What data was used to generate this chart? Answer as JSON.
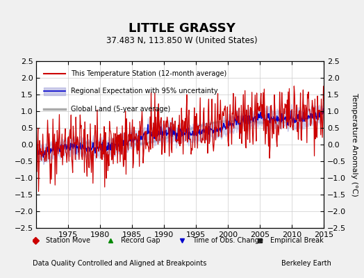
{
  "title": "LITTLE GRASSY",
  "subtitle": "37.483 N, 113.850 W (United States)",
  "ylabel": "Temperature Anomaly (°C)",
  "xlabel_left": "Data Quality Controlled and Aligned at Breakpoints",
  "xlabel_right": "Berkeley Earth",
  "ylim": [
    -2.5,
    2.5
  ],
  "xlim": [
    1970,
    2015
  ],
  "yticks": [
    -2.5,
    -2,
    -1.5,
    -1,
    -0.5,
    0,
    0.5,
    1,
    1.5,
    2,
    2.5
  ],
  "xticks": [
    1975,
    1980,
    1985,
    1990,
    1995,
    2000,
    2005,
    2010,
    2015
  ],
  "bg_color": "#f0f0f0",
  "plot_bg_color": "#ffffff",
  "grid_color": "#cccccc",
  "legend_station": "This Temperature Station (12-month average)",
  "legend_regional": "Regional Expectation with 95% uncertainty",
  "legend_global": "Global Land (5-year average)",
  "line_station_color": "#cc0000",
  "line_regional_color": "#0000cc",
  "line_regional_fill": "#aaaadd",
  "line_global_color": "#aaaaaa",
  "marker_station_move": {
    "color": "#cc0000",
    "marker": "D",
    "label": "Station Move"
  },
  "marker_record_gap": {
    "color": "#008800",
    "marker": "^",
    "label": "Record Gap"
  },
  "marker_time_obs": {
    "color": "#0000cc",
    "marker": "v",
    "label": "Time of Obs. Change"
  },
  "marker_empirical": {
    "color": "#333333",
    "marker": "s",
    "label": "Empirical Break"
  }
}
